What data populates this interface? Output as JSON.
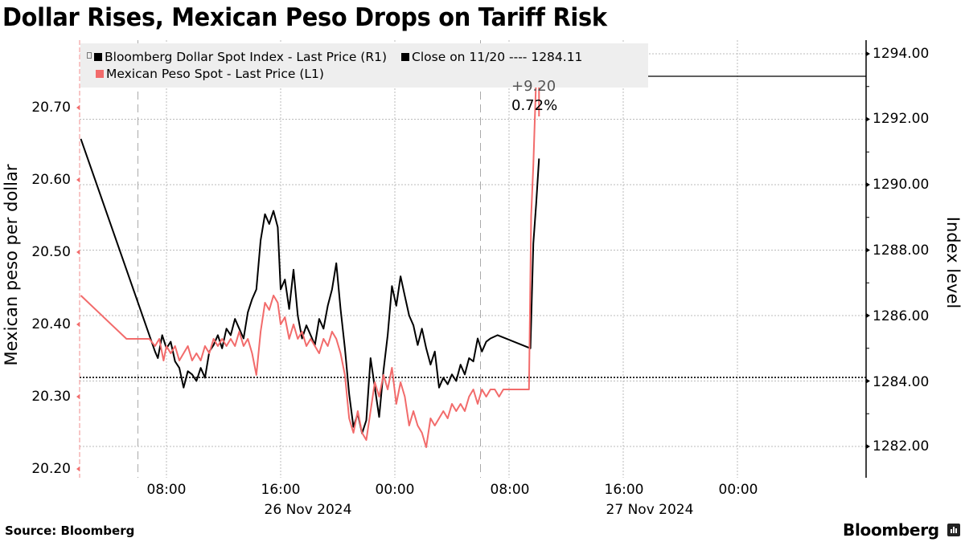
{
  "title": "Dollar Rises, Mexican Peso Drops on Tariff Risk",
  "footer": {
    "source": "Source: Bloomberg",
    "brand": "Bloomberg"
  },
  "legend": {
    "series1": "Bloomberg Dollar Spot Index - Last Price (R1)",
    "close": "Close on 11/20 ---- 1284.11",
    "series2": "Mexican Peso Spot - Last Price (L1)"
  },
  "annotation": {
    "change": "+9.20",
    "pct": "0.72%"
  },
  "axes": {
    "left_label": "Mexican peso per dollar",
    "right_label": "Index level",
    "left_ticks": [
      "20.70",
      "20.60",
      "20.50",
      "20.40",
      "20.30",
      "20.20"
    ],
    "right_ticks": [
      "1294.00",
      "1292.00",
      "1290.00",
      "1288.00",
      "1286.00",
      "1284.00",
      "1282.00"
    ],
    "x_ticks": [
      "08:00",
      "16:00",
      "00:00",
      "08:00",
      "16:00",
      "00:00"
    ],
    "x_dates": [
      "26 Nov 2024",
      "27 Nov 2024"
    ]
  },
  "colors": {
    "dollar": "#000000",
    "peso": "#f26b6b",
    "legend_bg": "#eeeeee",
    "grid": "#bbbbbb"
  },
  "chart_data": {
    "type": "line",
    "title": "Dollar Rises, Mexican Peso Drops on Tariff Risk",
    "xlabel": "",
    "x_tick_labels": [
      "08:00",
      "16:00",
      "00:00",
      "08:00",
      "16:00",
      "00:00"
    ],
    "x_date_labels": [
      "26 Nov 2024",
      "27 Nov 2024"
    ],
    "y_left": {
      "label": "Mexican peso per dollar",
      "range": [
        20.19,
        20.77
      ],
      "ticks": [
        20.2,
        20.3,
        20.4,
        20.5,
        20.6,
        20.7
      ]
    },
    "y_right": {
      "label": "Index level",
      "range": [
        1281.0,
        1294.6
      ],
      "ticks": [
        1282,
        1284,
        1286,
        1288,
        1290,
        1292,
        1294
      ]
    },
    "reference_line": {
      "label": "Close on 11/20",
      "value": 1284.11,
      "axis": "right"
    },
    "annotation": {
      "change": 9.2,
      "pct_change": 0.72
    },
    "grid": true,
    "legend_position": "top-left",
    "series": [
      {
        "name": "Bloomberg Dollar Spot Index - Last Price (R1)",
        "axis": "right",
        "color": "#000000",
        "x_hours_from_26nov_0800": [
          -6.0,
          -0.8,
          -0.6,
          -0.3,
          0.0,
          0.3,
          0.6,
          0.9,
          1.2,
          1.5,
          1.8,
          2.1,
          2.4,
          2.7,
          3.0,
          3.3,
          3.6,
          3.9,
          4.2,
          4.5,
          4.8,
          5.1,
          5.4,
          5.7,
          6.0,
          6.3,
          6.6,
          6.9,
          7.2,
          7.5,
          7.8,
          8.0,
          8.3,
          8.6,
          8.9,
          9.2,
          9.5,
          9.8,
          10.1,
          10.4,
          10.7,
          11.0,
          11.3,
          11.6,
          11.9,
          12.2,
          12.5,
          12.8,
          13.1,
          13.4,
          13.7,
          14.0,
          14.3,
          14.6,
          14.9,
          15.2,
          15.5,
          15.8,
          16.1,
          16.4,
          16.7,
          17.0,
          17.3,
          17.6,
          17.9,
          18.2,
          18.5,
          18.8,
          19.1,
          19.4,
          19.7,
          20.0,
          20.3,
          20.6,
          20.9,
          21.2,
          21.5,
          21.8,
          22.1,
          22.4,
          22.7,
          23.2,
          25.5,
          25.7,
          25.9,
          26.1
        ],
        "values": [
          1291.4,
          1284.9,
          1284.7,
          1285.4,
          1285.0,
          1285.2,
          1284.6,
          1284.4,
          1283.8,
          1284.3,
          1284.2,
          1284.0,
          1284.4,
          1284.1,
          1284.9,
          1285.1,
          1285.4,
          1285.0,
          1285.6,
          1285.4,
          1285.9,
          1285.6,
          1285.3,
          1286.1,
          1286.5,
          1286.8,
          1288.3,
          1289.1,
          1288.8,
          1289.2,
          1288.7,
          1286.8,
          1287.1,
          1286.2,
          1287.4,
          1286.0,
          1285.3,
          1285.7,
          1285.4,
          1285.1,
          1285.9,
          1285.6,
          1286.3,
          1286.8,
          1287.6,
          1286.2,
          1285.0,
          1283.6,
          1282.6,
          1283.0,
          1282.4,
          1282.8,
          1284.7,
          1283.8,
          1282.9,
          1284.3,
          1285.4,
          1286.9,
          1286.3,
          1287.2,
          1286.6,
          1286.0,
          1285.7,
          1285.1,
          1285.6,
          1285.0,
          1284.5,
          1284.9,
          1283.8,
          1284.1,
          1283.9,
          1284.2,
          1284.0,
          1284.5,
          1284.2,
          1284.7,
          1284.6,
          1285.3,
          1284.9,
          1285.2,
          1285.3,
          1285.4,
          1285.0,
          1288.2,
          1289.4,
          1290.8
        ]
      },
      {
        "name": "Mexican Peso Spot - Last Price (L1)",
        "axis": "left",
        "color": "#f26b6b",
        "x_hours_from_26nov_0800": [
          -6.0,
          -2.8,
          -1.2,
          -0.8,
          -0.5,
          -0.2,
          0.0,
          0.3,
          0.6,
          0.9,
          1.2,
          1.5,
          1.8,
          2.1,
          2.4,
          2.7,
          3.0,
          3.3,
          3.6,
          3.9,
          4.2,
          4.5,
          4.8,
          5.1,
          5.4,
          5.7,
          6.0,
          6.3,
          6.6,
          6.9,
          7.2,
          7.5,
          7.8,
          8.0,
          8.3,
          8.6,
          8.9,
          9.2,
          9.5,
          9.8,
          10.1,
          10.4,
          10.7,
          11.0,
          11.3,
          11.6,
          11.9,
          12.2,
          12.5,
          12.8,
          13.1,
          13.4,
          13.7,
          14.0,
          14.3,
          14.6,
          14.9,
          15.2,
          15.5,
          15.8,
          16.1,
          16.4,
          16.7,
          17.0,
          17.3,
          17.6,
          17.9,
          18.2,
          18.5,
          18.8,
          19.1,
          19.4,
          19.7,
          20.0,
          20.3,
          20.6,
          20.9,
          21.2,
          21.5,
          21.8,
          22.1,
          22.4,
          22.7,
          23.0,
          23.3,
          23.6,
          23.9,
          24.2,
          24.5,
          24.8,
          25.1,
          25.4,
          25.55,
          25.7,
          25.9
        ],
        "values": [
          20.44,
          20.38,
          20.38,
          20.37,
          20.38,
          20.35,
          20.37,
          20.36,
          20.37,
          20.35,
          20.36,
          20.37,
          20.35,
          20.36,
          20.35,
          20.37,
          20.36,
          20.38,
          20.37,
          20.38,
          20.37,
          20.38,
          20.37,
          20.39,
          20.37,
          20.38,
          20.36,
          20.33,
          20.39,
          20.43,
          20.42,
          20.44,
          20.43,
          20.4,
          20.41,
          20.38,
          20.4,
          20.38,
          20.39,
          20.37,
          20.38,
          20.37,
          20.36,
          20.38,
          20.37,
          20.39,
          20.38,
          20.36,
          20.33,
          20.27,
          20.25,
          20.28,
          20.25,
          20.24,
          20.28,
          20.32,
          20.3,
          20.33,
          20.31,
          20.34,
          20.29,
          20.32,
          20.3,
          20.26,
          20.28,
          20.26,
          20.25,
          20.23,
          20.27,
          20.26,
          20.27,
          20.28,
          20.27,
          20.29,
          20.28,
          20.29,
          20.28,
          20.3,
          20.31,
          20.29,
          20.31,
          20.3,
          20.31,
          20.31,
          20.3,
          20.31,
          20.31,
          20.31,
          20.31,
          20.31,
          20.31,
          20.31,
          20.55,
          20.62,
          20.74
        ]
      }
    ]
  }
}
